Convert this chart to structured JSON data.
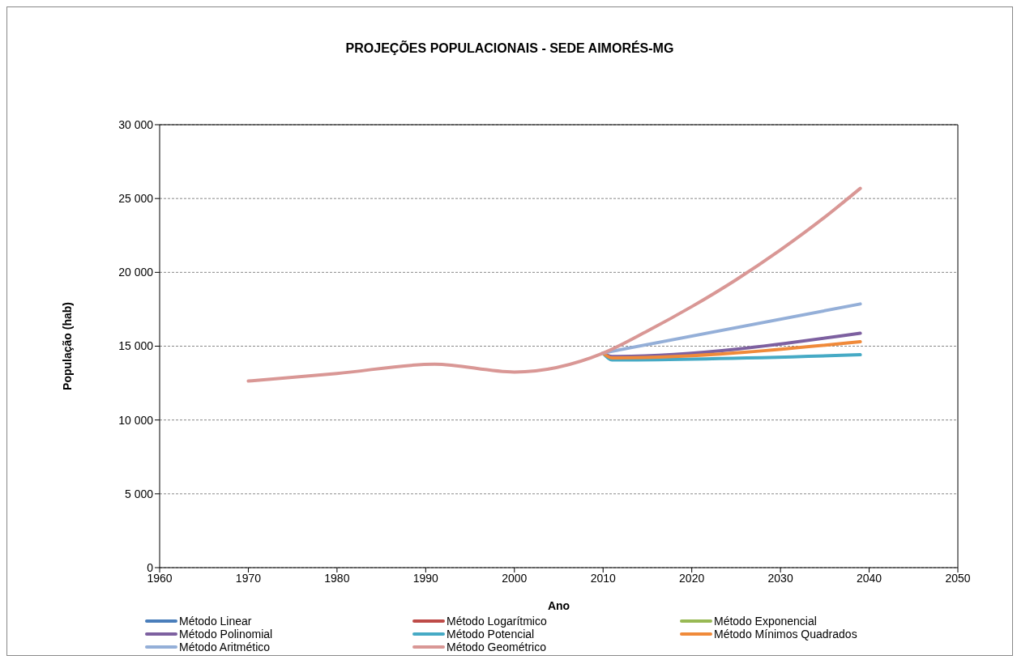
{
  "chart_data": {
    "type": "line",
    "title": "PROJEÇÕES POPULACIONAIS - SEDE AIMORÉS-MG",
    "xlabel": "Ano",
    "ylabel": "População (hab)",
    "xlim": [
      1960,
      2050
    ],
    "xticks": [
      1960,
      1970,
      1980,
      1990,
      2000,
      2010,
      2020,
      2030,
      2040,
      2050
    ],
    "ylim": [
      0,
      30000
    ],
    "yticks": [
      0,
      {
        "value": 5000,
        "label": "5 000"
      },
      {
        "value": 10000,
        "label": "10 000"
      },
      {
        "value": 15000,
        "label": "15 000"
      },
      {
        "value": 20000,
        "label": "20 000"
      },
      {
        "value": 25000,
        "label": "25 000"
      },
      {
        "value": 30000,
        "label": "30 000"
      }
    ],
    "grid": "y",
    "legend": "bottom",
    "marker": "none",
    "line_style": "solid",
    "series": [
      {
        "name": "Método Linear",
        "color": "#4a7ebb"
      },
      {
        "name": "Método Logarítmico",
        "color": "#be4b48"
      },
      {
        "name": "Método Exponencial",
        "color": "#98b954"
      },
      {
        "name": "Método Polinomial",
        "color": "#7d60a0",
        "x": [
          2010,
          2011,
          2039
        ],
        "values": [
          14530,
          14300,
          15880
        ]
      },
      {
        "name": "Método Potencial",
        "color": "#46aac5",
        "x": [
          2010,
          2011,
          2039
        ],
        "values": [
          14530,
          14070,
          14420
        ]
      },
      {
        "name": "Método Mínimos Quadrados",
        "color": "#f08a3a",
        "x": [
          2010,
          2011,
          2039
        ],
        "values": [
          14530,
          14200,
          15300
        ]
      },
      {
        "name": "Método Aritmético",
        "color": "#94afd8",
        "x": [
          2010,
          2011,
          2039
        ],
        "values": [
          14530,
          14650,
          17860
        ]
      },
      {
        "name": "Método Geométrico",
        "color": "#d99795",
        "x": [
          1970,
          1980,
          1991,
          2000,
          2010,
          2015,
          2020,
          2025,
          2030,
          2035,
          2039
        ],
        "values": [
          12640,
          13150,
          13780,
          13250,
          14530,
          16030,
          17680,
          19500,
          21520,
          23740,
          25690
        ]
      }
    ]
  }
}
